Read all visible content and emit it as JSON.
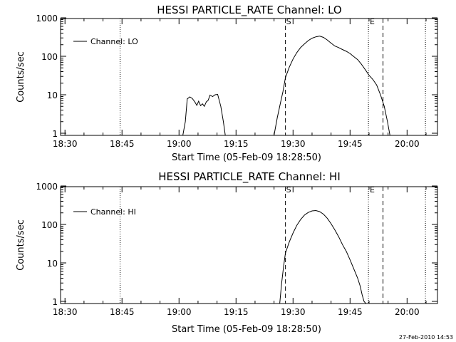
{
  "timestamp": "27-Feb-2010 14:53",
  "chart_data": [
    {
      "type": "line",
      "title": "HESSI PARTICLE_RATE Channel: LO",
      "xlabel": "Start Time (05-Feb-09 18:28:50)",
      "ylabel": "Counts/sec",
      "x_tick_labels": [
        "18:30",
        "18:45",
        "19:00",
        "19:15",
        "19:30",
        "19:45",
        "20:00"
      ],
      "y_tick_labels": [
        "1",
        "10",
        "100",
        "1000"
      ],
      "y_scale": "log",
      "xlim": [
        "18:28:50",
        "20:08:00"
      ],
      "ylim": [
        0.8,
        1000
      ],
      "legend": {
        "label": "Channel: LO",
        "placement": "top-left"
      },
      "markers": [
        {
          "label": "S",
          "time": "19:28:00",
          "style": "dashed"
        },
        {
          "label": "E",
          "time": "19:50:00",
          "style": "dotted"
        }
      ],
      "dotted_lines": [
        "18:44:30",
        "19:49:50",
        "20:04:50"
      ],
      "dashed_lines": [
        "19:28:00",
        "19:53:40"
      ],
      "series": [
        {
          "values": [
            [
              "19:01:00",
              0.8
            ],
            [
              "19:01:40",
              2.0
            ],
            [
              "19:02:10",
              7.8
            ],
            [
              "19:02:50",
              8.8
            ],
            [
              "19:03:30",
              8.0
            ],
            [
              "19:04:10",
              6.5
            ],
            [
              "19:04:40",
              5.3
            ],
            [
              "19:05:10",
              6.8
            ],
            [
              "19:05:40",
              5.2
            ],
            [
              "19:06:10",
              5.8
            ],
            [
              "19:06:40",
              5.0
            ],
            [
              "19:07:10",
              6.5
            ],
            [
              "19:07:40",
              7.2
            ],
            [
              "19:08:10",
              9.8
            ],
            [
              "19:08:50",
              9.0
            ],
            [
              "19:09:30",
              10.0
            ],
            [
              "19:10:10",
              10.2
            ],
            [
              "19:11:00",
              5.0
            ],
            [
              "19:11:40",
              2.0
            ],
            [
              "19:12:10",
              0.8
            ],
            [
              "19:25:00",
              0.8
            ],
            [
              "19:25:50",
              2.5
            ],
            [
              "19:26:40",
              6.0
            ],
            [
              "19:27:20",
              12.0
            ],
            [
              "19:28:00",
              28.0
            ],
            [
              "19:29:00",
              52.0
            ],
            [
              "19:30:00",
              85.0
            ],
            [
              "19:31:00",
              125.0
            ],
            [
              "19:32:00",
              170.0
            ],
            [
              "19:33:00",
              210.0
            ],
            [
              "19:34:00",
              255.0
            ],
            [
              "19:35:00",
              295.0
            ],
            [
              "19:36:00",
              320.0
            ],
            [
              "19:37:00",
              335.0
            ],
            [
              "19:38:00",
              310.0
            ],
            [
              "19:39:00",
              265.0
            ],
            [
              "19:40:00",
              220.0
            ],
            [
              "19:41:00",
              185.0
            ],
            [
              "19:42:00",
              168.0
            ],
            [
              "19:43:00",
              150.0
            ],
            [
              "19:44:00",
              135.0
            ],
            [
              "19:45:00",
              118.0
            ],
            [
              "19:46:00",
              98.0
            ],
            [
              "19:47:00",
              82.0
            ],
            [
              "19:48:00",
              62.0
            ],
            [
              "19:49:00",
              45.0
            ],
            [
              "19:50:00",
              32.0
            ],
            [
              "19:51:00",
              25.0
            ],
            [
              "19:52:00",
              18.0
            ],
            [
              "19:53:00",
              10.0
            ],
            [
              "19:54:00",
              5.0
            ],
            [
              "19:54:50",
              2.0
            ],
            [
              "19:55:30",
              0.8
            ]
          ]
        }
      ]
    },
    {
      "type": "line",
      "title": "HESSI PARTICLE_RATE Channel: HI",
      "xlabel": "Start Time (05-Feb-09 18:28:50)",
      "ylabel": "Counts/sec",
      "x_tick_labels": [
        "18:30",
        "18:45",
        "19:00",
        "19:15",
        "19:30",
        "19:45",
        "20:00"
      ],
      "y_tick_labels": [
        "1",
        "10",
        "100",
        "1000"
      ],
      "y_scale": "log",
      "xlim": [
        "18:28:50",
        "20:08:00"
      ],
      "ylim": [
        0.8,
        1000
      ],
      "legend": {
        "label": "Channel: HI",
        "placement": "top-left"
      },
      "markers": [
        {
          "label": "S",
          "time": "19:28:00",
          "style": "dashed"
        },
        {
          "label": "E",
          "time": "19:50:00",
          "style": "dotted"
        }
      ],
      "dotted_lines": [
        "18:44:30",
        "19:49:50",
        "20:04:50"
      ],
      "dashed_lines": [
        "19:28:00",
        "19:53:40"
      ],
      "series": [
        {
          "values": [
            [
              "19:26:30",
              0.8
            ],
            [
              "19:27:00",
              3.0
            ],
            [
              "19:27:30",
              8.0
            ],
            [
              "19:28:00",
              18.0
            ],
            [
              "19:29:00",
              35.0
            ],
            [
              "19:30:00",
              60.0
            ],
            [
              "19:31:00",
              95.0
            ],
            [
              "19:32:00",
              135.0
            ],
            [
              "19:33:00",
              175.0
            ],
            [
              "19:34:00",
              205.0
            ],
            [
              "19:35:00",
              225.0
            ],
            [
              "19:36:00",
              230.0
            ],
            [
              "19:37:00",
              215.0
            ],
            [
              "19:38:00",
              185.0
            ],
            [
              "19:39:00",
              145.0
            ],
            [
              "19:40:00",
              105.0
            ],
            [
              "19:41:00",
              72.0
            ],
            [
              "19:42:00",
              48.0
            ],
            [
              "19:43:00",
              30.0
            ],
            [
              "19:44:00",
              20.0
            ],
            [
              "19:45:00",
              12.0
            ],
            [
              "19:46:00",
              7.0
            ],
            [
              "19:47:00",
              4.0
            ],
            [
              "19:47:40",
              2.5
            ],
            [
              "19:48:10",
              1.5
            ],
            [
              "19:48:40",
              1.0
            ],
            [
              "19:49:10",
              0.8
            ]
          ]
        }
      ]
    }
  ]
}
